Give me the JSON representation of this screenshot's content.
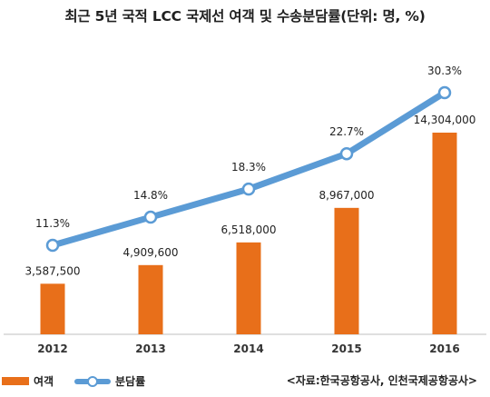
{
  "title": "최근 5년 국적 LCC 국제선 여객 및 수송분담률(단위: 명, %)",
  "source": "<자료:한국공항공사, 인천국제공항공사>",
  "colors": {
    "bar": "#e86f1a",
    "line": "#5b9bd5",
    "marker_fill": "#ffffff",
    "axis": "#bfbfbf"
  },
  "chart_data": {
    "type": "bar+line",
    "categories": [
      "2012",
      "2013",
      "2014",
      "2015",
      "2016"
    ],
    "series": [
      {
        "name": "여객",
        "type": "bar",
        "values": [
          3587500,
          4909600,
          6518000,
          8967000,
          14304000
        ],
        "labels": [
          "3,587,500",
          "4,909,600",
          "6,518,000",
          "8,967,000",
          "14,304,000"
        ]
      },
      {
        "name": "분담률",
        "type": "line",
        "values": [
          11.3,
          14.8,
          18.3,
          22.7,
          30.3
        ],
        "labels": [
          "11.3%",
          "14.8%",
          "18.3%",
          "22.7%",
          "30.3%"
        ]
      }
    ],
    "grid": false,
    "legend_position": "bottom-left"
  }
}
